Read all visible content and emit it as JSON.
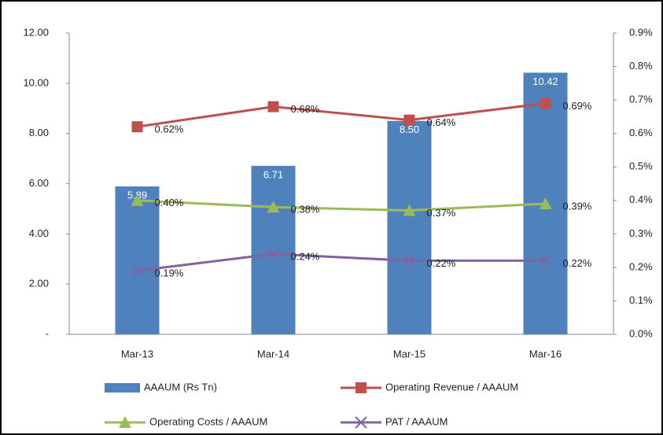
{
  "chart_data": {
    "type": "combo",
    "categories": [
      "Mar-13",
      "Mar-14",
      "Mar-15",
      "Mar-16"
    ],
    "ylim": [
      0,
      12
    ],
    "yticks": [
      {
        "value": 0,
        "label": "-"
      },
      {
        "value": 2,
        "label": "2.00"
      },
      {
        "value": 4,
        "label": "4.00"
      },
      {
        "value": 6,
        "label": "6.00"
      },
      {
        "value": 8,
        "label": "8.00"
      },
      {
        "value": 10,
        "label": "10.00"
      },
      {
        "value": 12,
        "label": "12.00"
      }
    ],
    "y2lim": [
      0,
      0.9
    ],
    "y2ticks": [
      {
        "value": 0,
        "label": "0.0%"
      },
      {
        "value": 0.1,
        "label": "0.1%"
      },
      {
        "value": 0.2,
        "label": "0.2%"
      },
      {
        "value": 0.3,
        "label": "0.3%"
      },
      {
        "value": 0.4,
        "label": "0.4%"
      },
      {
        "value": 0.5,
        "label": "0.5%"
      },
      {
        "value": 0.6,
        "label": "0.6%"
      },
      {
        "value": 0.7,
        "label": "0.7%"
      },
      {
        "value": 0.8,
        "label": "0.8%"
      },
      {
        "value": 0.9,
        "label": "0.9%"
      }
    ],
    "grid": false,
    "series": [
      {
        "name": "AAAUM (Rs Tn)",
        "type": "bar",
        "color": "#4f81bd",
        "values": [
          5.89,
          6.71,
          8.5,
          10.42
        ],
        "value_labels": [
          "5.89",
          "6.71",
          "8.50",
          "10.42"
        ]
      },
      {
        "name": "Operating Revenue / AAAUM",
        "type": "line",
        "marker": "square",
        "axis": "y2",
        "color": "#c0504d",
        "values": [
          0.62,
          0.68,
          0.64,
          0.69
        ],
        "value_labels": [
          "0.62%",
          "0.68%",
          "0.64%",
          "0.69%"
        ]
      },
      {
        "name": "Operating Costs / AAAUM",
        "type": "line",
        "marker": "triangle",
        "axis": "y2",
        "color": "#9bbb59",
        "values": [
          0.4,
          0.38,
          0.37,
          0.39
        ],
        "value_labels": [
          "0.40%",
          "0.38%",
          "0.37%",
          "0.39%"
        ]
      },
      {
        "name": "PAT / AAAUM",
        "type": "line",
        "marker": "x",
        "axis": "y2",
        "color": "#8064a2",
        "values": [
          0.19,
          0.24,
          0.22,
          0.22
        ],
        "value_labels": [
          "0.19%",
          "0.24%",
          "0.22%",
          "0.22%"
        ]
      }
    ]
  }
}
